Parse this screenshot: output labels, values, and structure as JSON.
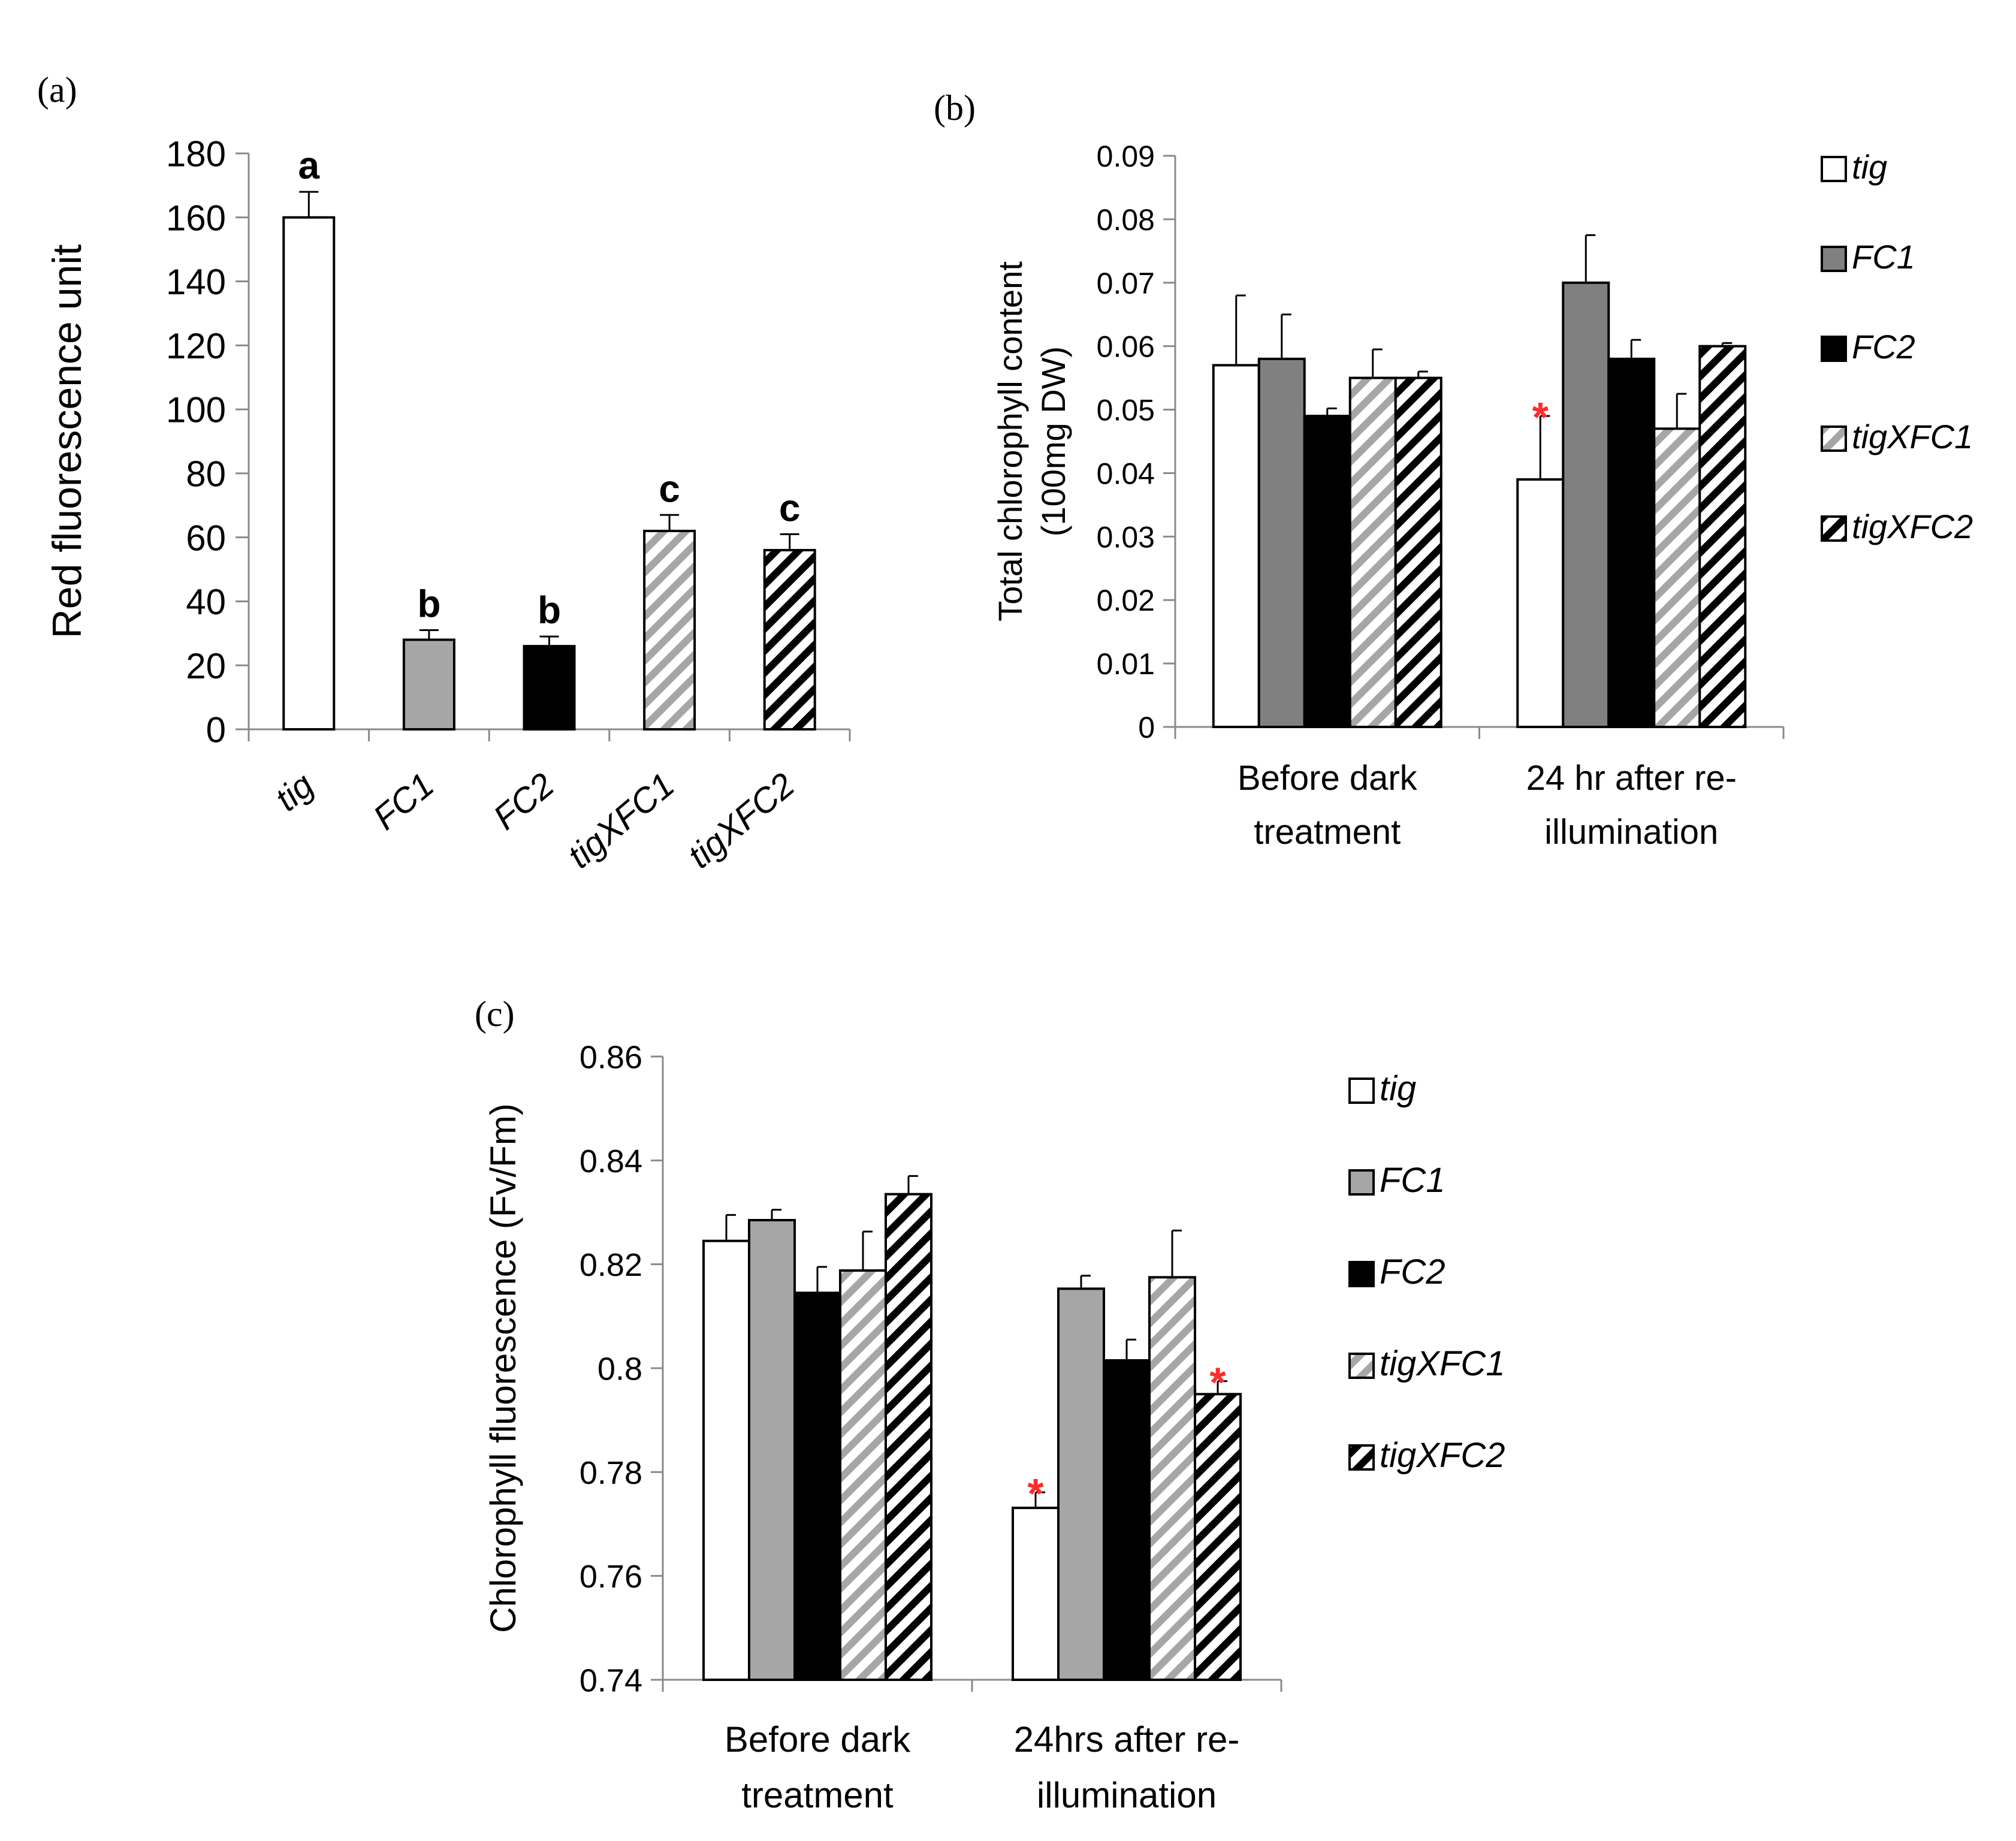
{
  "chart_data": [
    {
      "panel": "(a)",
      "type": "bar",
      "ylabel": "Red fluorescence unit",
      "ylim": [
        0,
        180
      ],
      "yticks": [
        "0",
        "20",
        "40",
        "60",
        "80",
        "100",
        "120",
        "140",
        "160",
        "180"
      ],
      "categories": [
        "tig",
        "FC1",
        "FC2",
        "tigXFC1",
        "tigXFC2"
      ],
      "values": [
        160,
        28,
        26,
        62,
        56
      ],
      "errors": [
        8,
        3,
        3,
        5,
        5
      ],
      "significance": [
        "a",
        "b",
        "b",
        "c",
        "c"
      ],
      "styles": [
        "white",
        "gray",
        "black",
        "light-hatch",
        "dark-hatch"
      ]
    },
    {
      "panel": "(b)",
      "type": "bar",
      "ylabel_line1": "Total chlorophyll content",
      "ylabel_line2": "(100mg DW)",
      "ylim": [
        0,
        0.09
      ],
      "yticks": [
        "0",
        "0.01",
        "0.02",
        "0.03",
        "0.04",
        "0.05",
        "0.06",
        "0.07",
        "0.08",
        "0.09"
      ],
      "groups": [
        {
          "line1": "Before dark",
          "line2": "treatment"
        },
        {
          "line1": "24 hr after re-",
          "line2": "illumination"
        }
      ],
      "series": [
        {
          "name": "tig",
          "style": "white",
          "values": [
            0.057,
            0.039
          ],
          "errors": [
            0.011,
            0.01
          ],
          "stars": [
            false,
            true
          ]
        },
        {
          "name": "FC1",
          "style": "darkgray",
          "values": [
            0.058,
            0.07
          ],
          "errors": [
            0.007,
            0.0075
          ],
          "stars": [
            false,
            false
          ]
        },
        {
          "name": "FC2",
          "style": "black",
          "values": [
            0.049,
            0.058
          ],
          "errors": [
            0.0012,
            0.003
          ],
          "stars": [
            false,
            false
          ]
        },
        {
          "name": "tigXFC1",
          "style": "light-hatch",
          "values": [
            0.055,
            0.047
          ],
          "errors": [
            0.0045,
            0.0055
          ],
          "stars": [
            false,
            false
          ]
        },
        {
          "name": "tigXFC2",
          "style": "dark-hatch",
          "values": [
            0.055,
            0.06
          ],
          "errors": [
            0.001,
            0.0005
          ],
          "stars": [
            false,
            false
          ]
        }
      ],
      "legend_position": "right"
    },
    {
      "panel": "(c)",
      "type": "bar",
      "ylabel": "Chlorophyll fluorescence (Fv/Fm)",
      "ylim": [
        0.74,
        0.86
      ],
      "yticks": [
        "0.74",
        "0.76",
        "0.78",
        "0.8",
        "0.82",
        "0.84",
        "0.86"
      ],
      "groups": [
        {
          "line1": "Before dark",
          "line2": "treatment"
        },
        {
          "line1": "24hrs after re-",
          "line2": "illumination"
        }
      ],
      "series": [
        {
          "name": "tig",
          "style": "white",
          "values": [
            0.8245,
            0.7731
          ],
          "errors": [
            0.005,
            0.003
          ],
          "stars": [
            false,
            true
          ]
        },
        {
          "name": "FC1",
          "style": "gray",
          "values": [
            0.8285,
            0.8153
          ],
          "errors": [
            0.002,
            0.0025
          ],
          "stars": [
            false,
            false
          ]
        },
        {
          "name": "FC2",
          "style": "black",
          "values": [
            0.8145,
            0.8015
          ],
          "errors": [
            0.005,
            0.004
          ],
          "stars": [
            false,
            false
          ]
        },
        {
          "name": "tigXFC1",
          "style": "light-hatch",
          "values": [
            0.8188,
            0.8175
          ],
          "errors": [
            0.0075,
            0.009
          ],
          "stars": [
            false,
            false
          ]
        },
        {
          "name": "tigXFC2",
          "style": "dark-hatch",
          "values": [
            0.8335,
            0.795
          ],
          "errors": [
            0.0035,
            0.0025
          ],
          "stars": [
            false,
            true
          ]
        }
      ],
      "legend_position": "right"
    }
  ],
  "panel_labels": {
    "a": "(a)",
    "b": "(b)",
    "c": "(c)"
  },
  "star_symbol": "*",
  "fills": {
    "white": "#ffffff",
    "gray": "#a6a6a6",
    "darkgray": "#808080",
    "black": "#000000",
    "light_hatch_stripe": "#a6a6a6",
    "dark_hatch_stripe": "#000000",
    "star_color": "#ff2a2a"
  }
}
